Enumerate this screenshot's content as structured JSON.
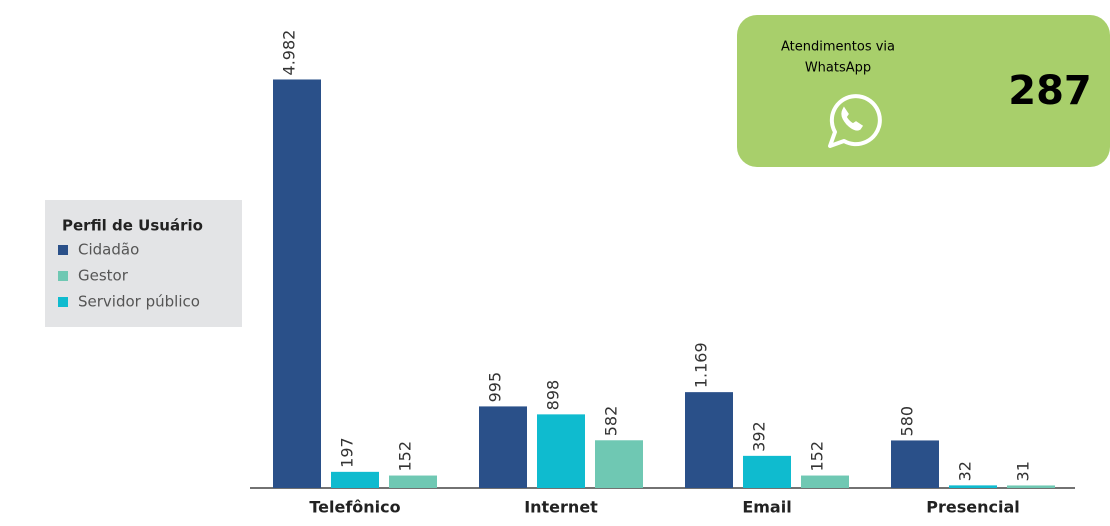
{
  "chart_data": {
    "type": "bar",
    "legend_title": "Perfil de Usuário",
    "categories": [
      "Telefônico",
      "Internet",
      "Email",
      "Presencial"
    ],
    "series": [
      {
        "name": "Cidadão",
        "color": "#2a5089",
        "values": [
          4982,
          995,
          1169,
          580
        ],
        "value_labels": [
          "4.982",
          "995",
          "1.169",
          "580"
        ]
      },
      {
        "name": "Gestor",
        "color": "#6fc8b3",
        "values": [
          152,
          582,
          152,
          31
        ]
      },
      {
        "name": "Servidor público",
        "color": "#0fbbcf",
        "values": [
          197,
          898,
          392,
          32
        ]
      }
    ],
    "ylim": [
      0,
      5000
    ],
    "legend": "left"
  },
  "card": {
    "label_lines": [
      "Atendimentos via",
      "WhatsApp"
    ],
    "value": 287,
    "color": "#a8cf6b"
  }
}
